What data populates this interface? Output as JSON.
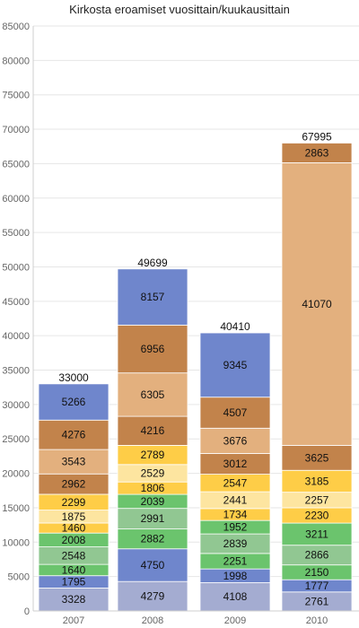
{
  "chart_data": {
    "type": "bar",
    "stacked": true,
    "title": "Kirkosta eroamiset vuosittain/kuukausittain",
    "xlabel": "",
    "ylabel": "",
    "ylim": [
      0,
      85000
    ],
    "yticks": [
      0,
      5000,
      10000,
      15000,
      20000,
      25000,
      30000,
      35000,
      40000,
      45000,
      50000,
      55000,
      60000,
      65000,
      70000,
      75000,
      80000,
      85000
    ],
    "grid": true,
    "categories": [
      "2007",
      "2008",
      "2009",
      "2010"
    ],
    "totals": [
      33000,
      49699,
      40410,
      67995
    ],
    "colors": [
      "#a4acd1",
      "#6f86cc",
      "#91c792",
      "#6bc46d",
      "#fde5a0",
      "#fecd47",
      "#e3b07e",
      "#c2834b"
    ],
    "stacks": [
      [
        {
          "value": 3328,
          "color_index": 0
        },
        {
          "value": 1795,
          "color_index": 1
        },
        {
          "value": 1640,
          "color_index": 3
        },
        {
          "value": 2548,
          "color_index": 2
        },
        {
          "value": 2008,
          "color_index": 3
        },
        {
          "value": 1460,
          "color_index": 5
        },
        {
          "value": 1875,
          "color_index": 4
        },
        {
          "value": 2299,
          "color_index": 5
        },
        {
          "value": 2962,
          "color_index": 7
        },
        {
          "value": 3543,
          "color_index": 6
        },
        {
          "value": 4276,
          "color_index": 7
        },
        {
          "value": 5266,
          "color_index": 1
        }
      ],
      [
        {
          "value": 4279,
          "color_index": 0
        },
        {
          "value": 4750,
          "color_index": 1
        },
        {
          "value": 2882,
          "color_index": 3
        },
        {
          "value": 2991,
          "color_index": 2
        },
        {
          "value": 2039,
          "color_index": 3
        },
        {
          "value": 1806,
          "color_index": 5
        },
        {
          "value": 2529,
          "color_index": 4
        },
        {
          "value": 2789,
          "color_index": 5
        },
        {
          "value": 4216,
          "color_index": 7
        },
        {
          "value": 6305,
          "color_index": 6
        },
        {
          "value": 6956,
          "color_index": 7
        },
        {
          "value": 8157,
          "color_index": 1
        }
      ],
      [
        {
          "value": 4108,
          "color_index": 0
        },
        {
          "value": 1998,
          "color_index": 1
        },
        {
          "value": 2251,
          "color_index": 3
        },
        {
          "value": 2839,
          "color_index": 2
        },
        {
          "value": 1952,
          "color_index": 3
        },
        {
          "value": 1734,
          "color_index": 5
        },
        {
          "value": 2441,
          "color_index": 4
        },
        {
          "value": 2547,
          "color_index": 5
        },
        {
          "value": 3012,
          "color_index": 7
        },
        {
          "value": 3676,
          "color_index": 6
        },
        {
          "value": 4507,
          "color_index": 7
        },
        {
          "value": 9345,
          "color_index": 1
        }
      ],
      [
        {
          "value": 2761,
          "color_index": 0
        },
        {
          "value": 1777,
          "color_index": 1
        },
        {
          "value": 2150,
          "color_index": 3
        },
        {
          "value": 2866,
          "color_index": 2
        },
        {
          "value": 3211,
          "color_index": 3
        },
        {
          "value": 2230,
          "color_index": 5
        },
        {
          "value": 2257,
          "color_index": 4
        },
        {
          "value": 3185,
          "color_index": 5
        },
        {
          "value": 3625,
          "color_index": 7
        },
        {
          "value": 41070,
          "color_index": 6
        },
        {
          "value": 2863,
          "color_index": 7
        }
      ]
    ]
  }
}
